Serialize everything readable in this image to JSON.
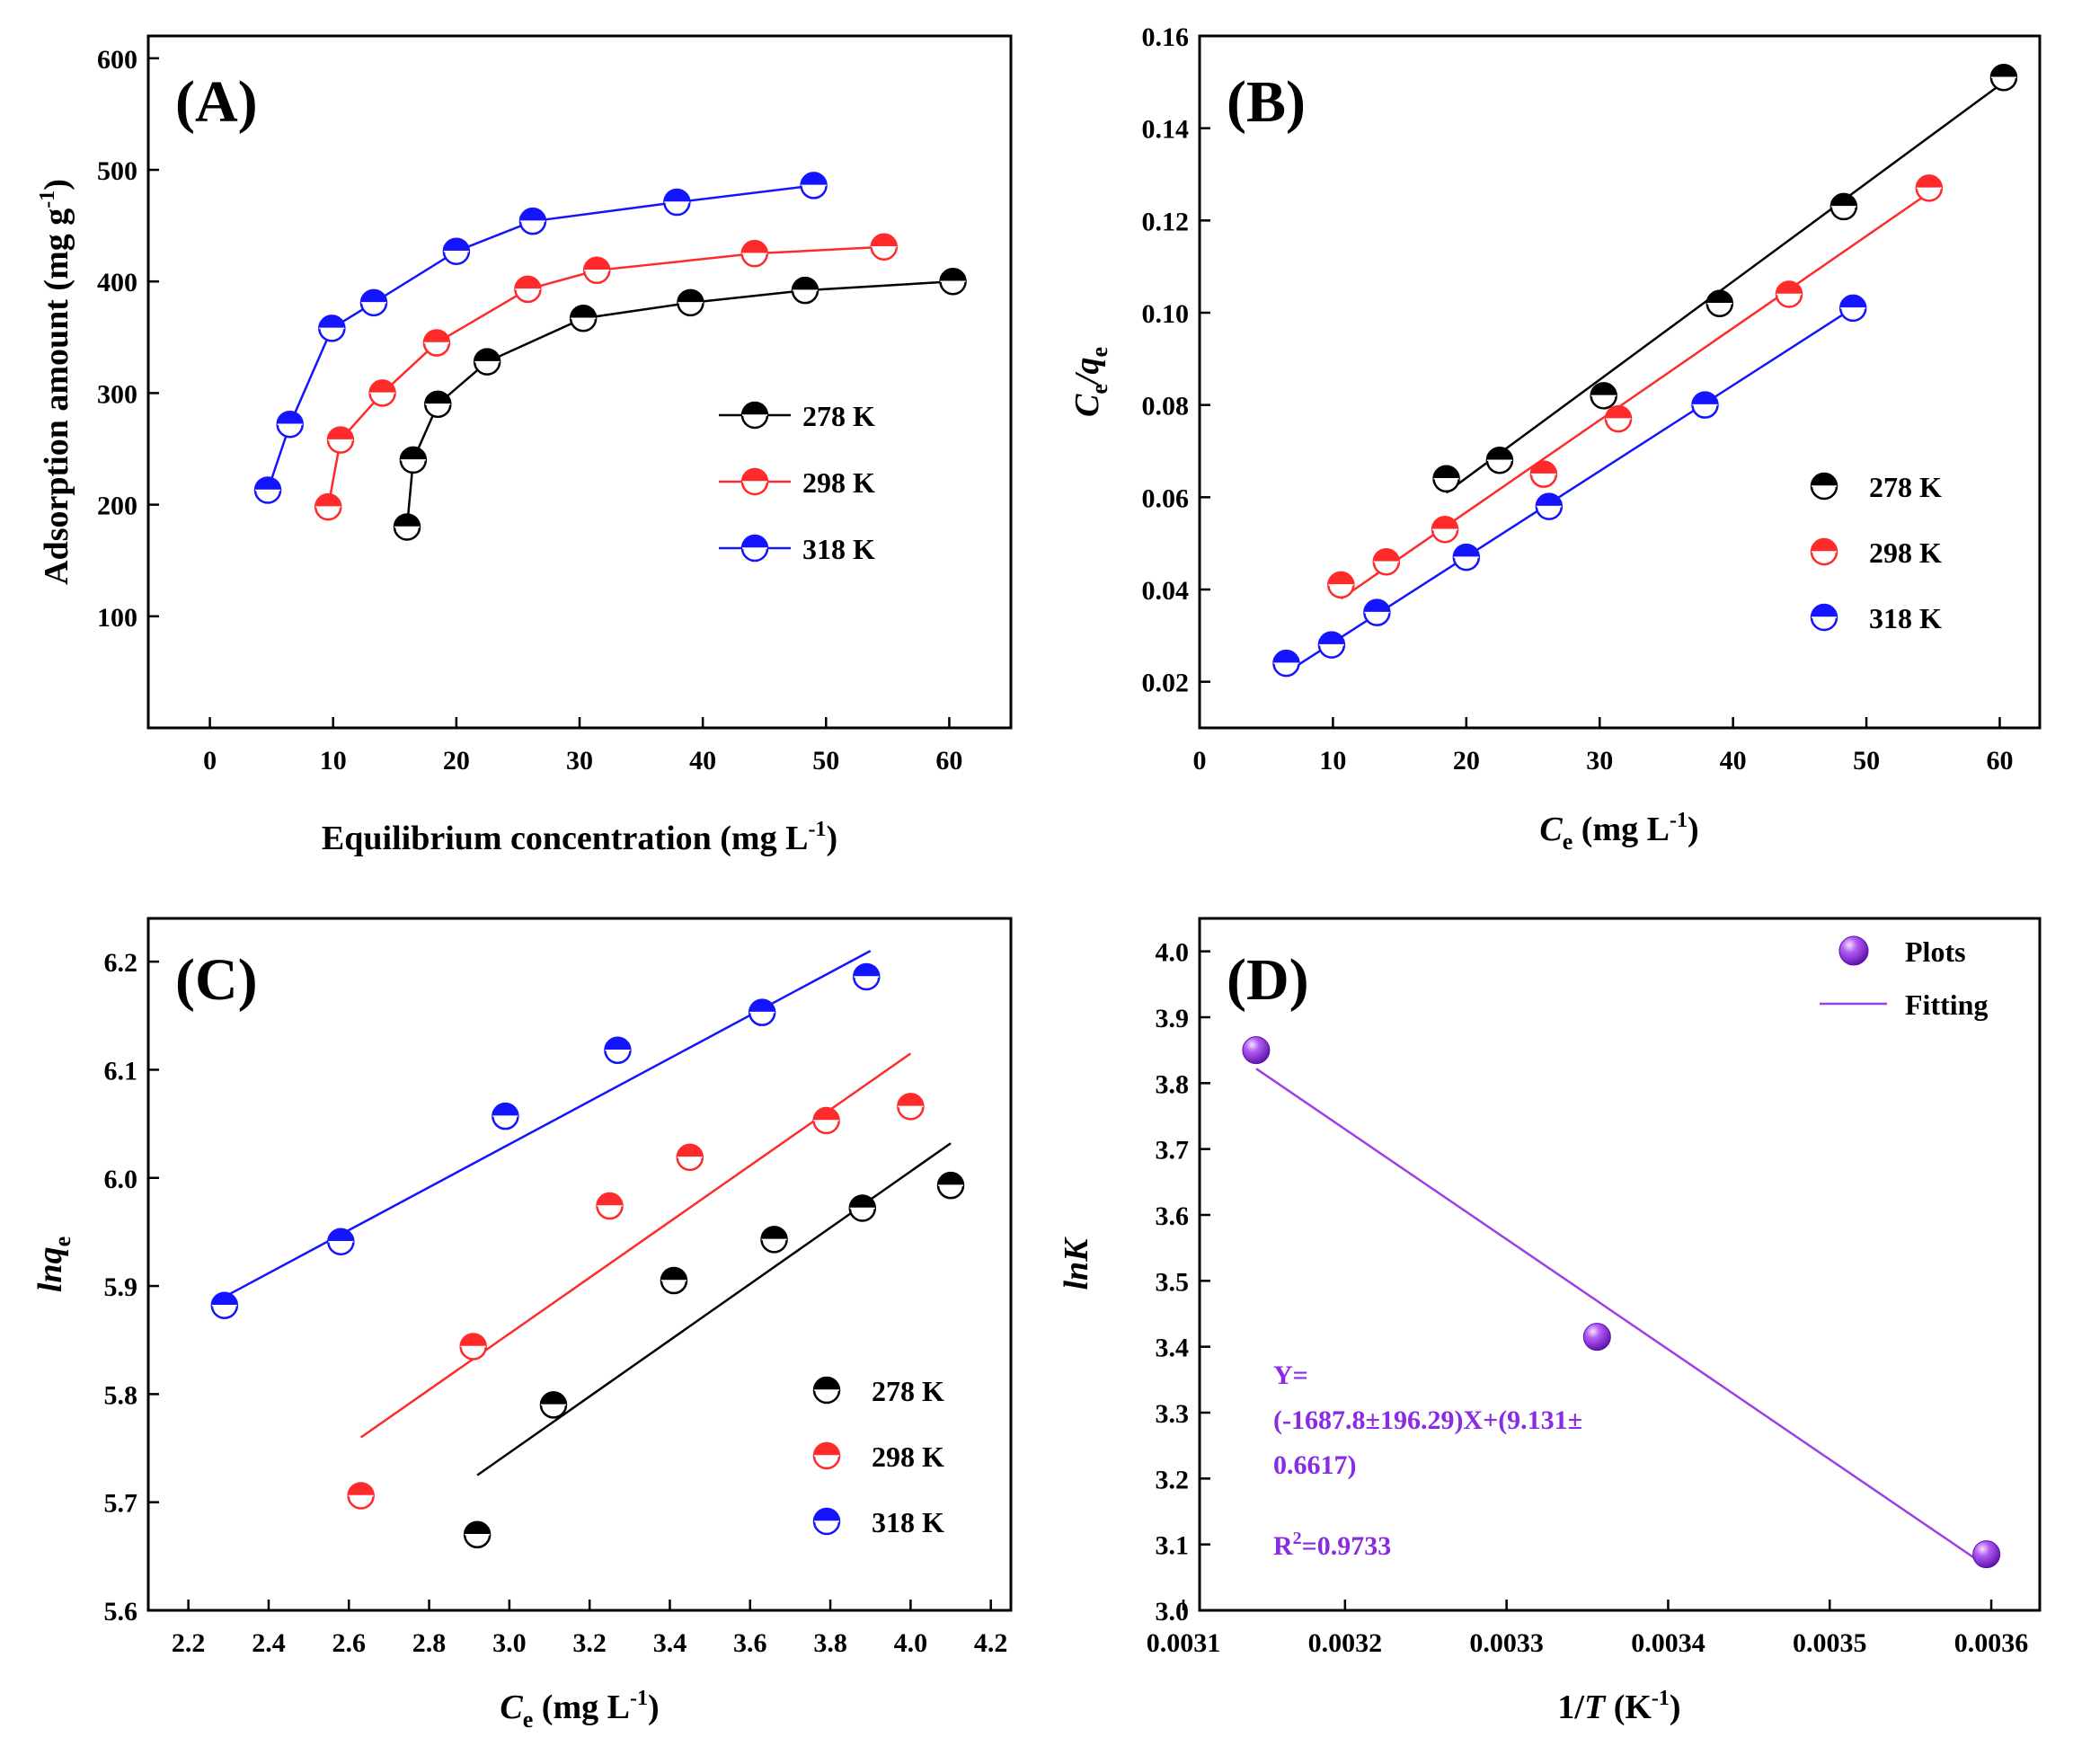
{
  "colors": {
    "278 K": "#000000",
    "298 K": "#ff2a2a",
    "318 K": "#1414ff",
    "fit_D": "#9d3ee6",
    "marker_D": "#8a2be2"
  },
  "chart_data": [
    {
      "panel": "(A)",
      "type": "line",
      "xlabel": "Equilibrium concentration (mg L",
      "xlabel_sup": "-1",
      "xlabel_end": ")",
      "ylabel": "Adsorption amount (mg g",
      "ylabel_sup": "-1",
      "ylabel_end": ")",
      "xlim": [
        -5,
        65
      ],
      "ylim": [
        0,
        620
      ],
      "xticks": [
        "0",
        "10",
        "20",
        "30",
        "40",
        "50",
        "60"
      ],
      "yticks": [
        "100",
        "200",
        "300",
        "400",
        "500",
        "600"
      ],
      "legend": [
        "278 K",
        "298 K",
        "318 K"
      ],
      "series": [
        {
          "name": "278 K",
          "x": [
            16.0,
            16.5,
            18.5,
            22.5,
            30.3,
            39.0,
            48.3,
            60.3
          ],
          "y": [
            180,
            240,
            290,
            328,
            367,
            381,
            392,
            400
          ]
        },
        {
          "name": "298 K",
          "x": [
            9.6,
            10.6,
            14.0,
            18.4,
            25.8,
            31.4,
            44.2,
            54.7
          ],
          "y": [
            198,
            258,
            300,
            345,
            393,
            410,
            425,
            431
          ]
        },
        {
          "name": "318 K",
          "x": [
            4.7,
            6.5,
            9.9,
            13.3,
            20.0,
            26.2,
            37.9,
            49.0
          ],
          "y": [
            213,
            272,
            358,
            381,
            427,
            454,
            471,
            486
          ]
        }
      ]
    },
    {
      "panel": "(B)",
      "type": "scatter",
      "xlabel": "C",
      "xlabel_sub": "e",
      "xlabel_end": " (mg L",
      "xlabel_sup": "-1",
      "xlabel_close": ")",
      "ylabel_parts": [
        "C",
        "e",
        "/q",
        "e"
      ],
      "xlim": [
        0,
        63
      ],
      "ylim": [
        0.01,
        0.16
      ],
      "xticks": [
        "0",
        "10",
        "20",
        "30",
        "40",
        "50",
        "60"
      ],
      "yticks": [
        "0.02",
        "0.04",
        "0.06",
        "0.08",
        "0.10",
        "0.12",
        "0.14",
        "0.16"
      ],
      "legend": [
        "278 K",
        "298 K",
        "318 K"
      ],
      "series": [
        {
          "name": "278 K",
          "x": [
            18.5,
            22.5,
            30.3,
            39.0,
            48.3,
            60.3
          ],
          "y": [
            0.064,
            0.068,
            0.082,
            0.102,
            0.123,
            0.151
          ],
          "fit": [
            [
              18.5,
              0.061
            ],
            [
              60.3,
              0.15
            ]
          ]
        },
        {
          "name": "298 K",
          "x": [
            10.6,
            14.0,
            18.4,
            25.8,
            31.4,
            44.2,
            54.7
          ],
          "y": [
            0.041,
            0.046,
            0.053,
            0.065,
            0.077,
            0.104,
            0.127
          ],
          "fit": [
            [
              10.6,
              0.038
            ],
            [
              54.7,
              0.126
            ]
          ]
        },
        {
          "name": "318 K",
          "x": [
            6.5,
            9.9,
            13.3,
            20.0,
            26.2,
            37.9,
            49.0
          ],
          "y": [
            0.024,
            0.028,
            0.035,
            0.047,
            0.058,
            0.08,
            0.101
          ],
          "fit": [
            [
              6.5,
              0.022
            ],
            [
              49.0,
              0.101
            ]
          ]
        }
      ]
    },
    {
      "panel": "(C)",
      "type": "scatter",
      "xlabel": "C",
      "xlabel_sub": "e",
      "xlabel_end": " (mg L",
      "xlabel_sup": "-1",
      "xlabel_close": ")",
      "ylabel_parts": [
        "lnq",
        "e"
      ],
      "xlim": [
        2.1,
        4.25
      ],
      "ylim": [
        5.6,
        6.24
      ],
      "xticks": [
        "2.2",
        "2.4",
        "2.6",
        "2.8",
        "3.0",
        "3.2",
        "3.4",
        "3.6",
        "3.8",
        "4.0",
        "4.2"
      ],
      "yticks": [
        "5.6",
        "5.7",
        "5.8",
        "5.9",
        "6.0",
        "6.1",
        "6.2"
      ],
      "legend": [
        "278 K",
        "298 K",
        "318 K"
      ],
      "series": [
        {
          "name": "278 K",
          "x": [
            2.92,
            3.11,
            3.41,
            3.66,
            3.88,
            4.1
          ],
          "y": [
            5.67,
            5.79,
            5.905,
            5.943,
            5.972,
            5.993
          ],
          "fit": [
            [
              2.92,
              5.725
            ],
            [
              4.1,
              6.032
            ]
          ]
        },
        {
          "name": "298 K",
          "x": [
            2.63,
            2.91,
            3.25,
            3.45,
            3.79,
            4.0
          ],
          "y": [
            5.706,
            5.844,
            5.974,
            6.019,
            6.053,
            6.066
          ],
          "fit": [
            [
              2.63,
              5.76
            ],
            [
              4.0,
              6.115
            ]
          ]
        },
        {
          "name": "318 K",
          "x": [
            2.29,
            2.58,
            2.99,
            3.27,
            3.63,
            3.89
          ],
          "y": [
            5.882,
            5.941,
            6.057,
            6.118,
            6.153,
            6.186
          ],
          "fit": [
            [
              2.29,
              5.89
            ],
            [
              3.9,
              6.21
            ]
          ]
        }
      ]
    },
    {
      "panel": "(D)",
      "type": "scatter",
      "xlabel": "1/",
      "xlabel_it": "T",
      "xlabel_end": " (K",
      "xlabel_sup": "-1",
      "xlabel_close": ")",
      "ylabel": "lnK",
      "xlim": [
        0.00311,
        0.00363
      ],
      "ylim": [
        3.0,
        4.05
      ],
      "xticks": [
        "0.0031",
        "0.0032",
        "0.0033",
        "0.0034",
        "0.0035",
        "0.0036"
      ],
      "yticks": [
        "3.0",
        "3.1",
        "3.2",
        "3.3",
        "3.4",
        "3.5",
        "3.6",
        "3.7",
        "3.8",
        "3.9",
        "4.0"
      ],
      "legend": [
        "Plots",
        "Fitting"
      ],
      "series": [
        {
          "name": "Plots",
          "x": [
            0.003145,
            0.003356,
            0.003597
          ],
          "y": [
            3.85,
            3.415,
            3.085
          ]
        },
        {
          "name": "Fitting",
          "x": [
            0.003145,
            0.003597
          ],
          "y": [
            3.822,
            3.067
          ]
        }
      ],
      "annotation": {
        "line1": "Y=",
        "line2": "(-1687.8±196.29)X+(9.131±",
        "line3": "0.6617)",
        "r2_prefix": "R",
        "r2_sup": "2",
        "r2_value": "=0.9733"
      }
    }
  ]
}
